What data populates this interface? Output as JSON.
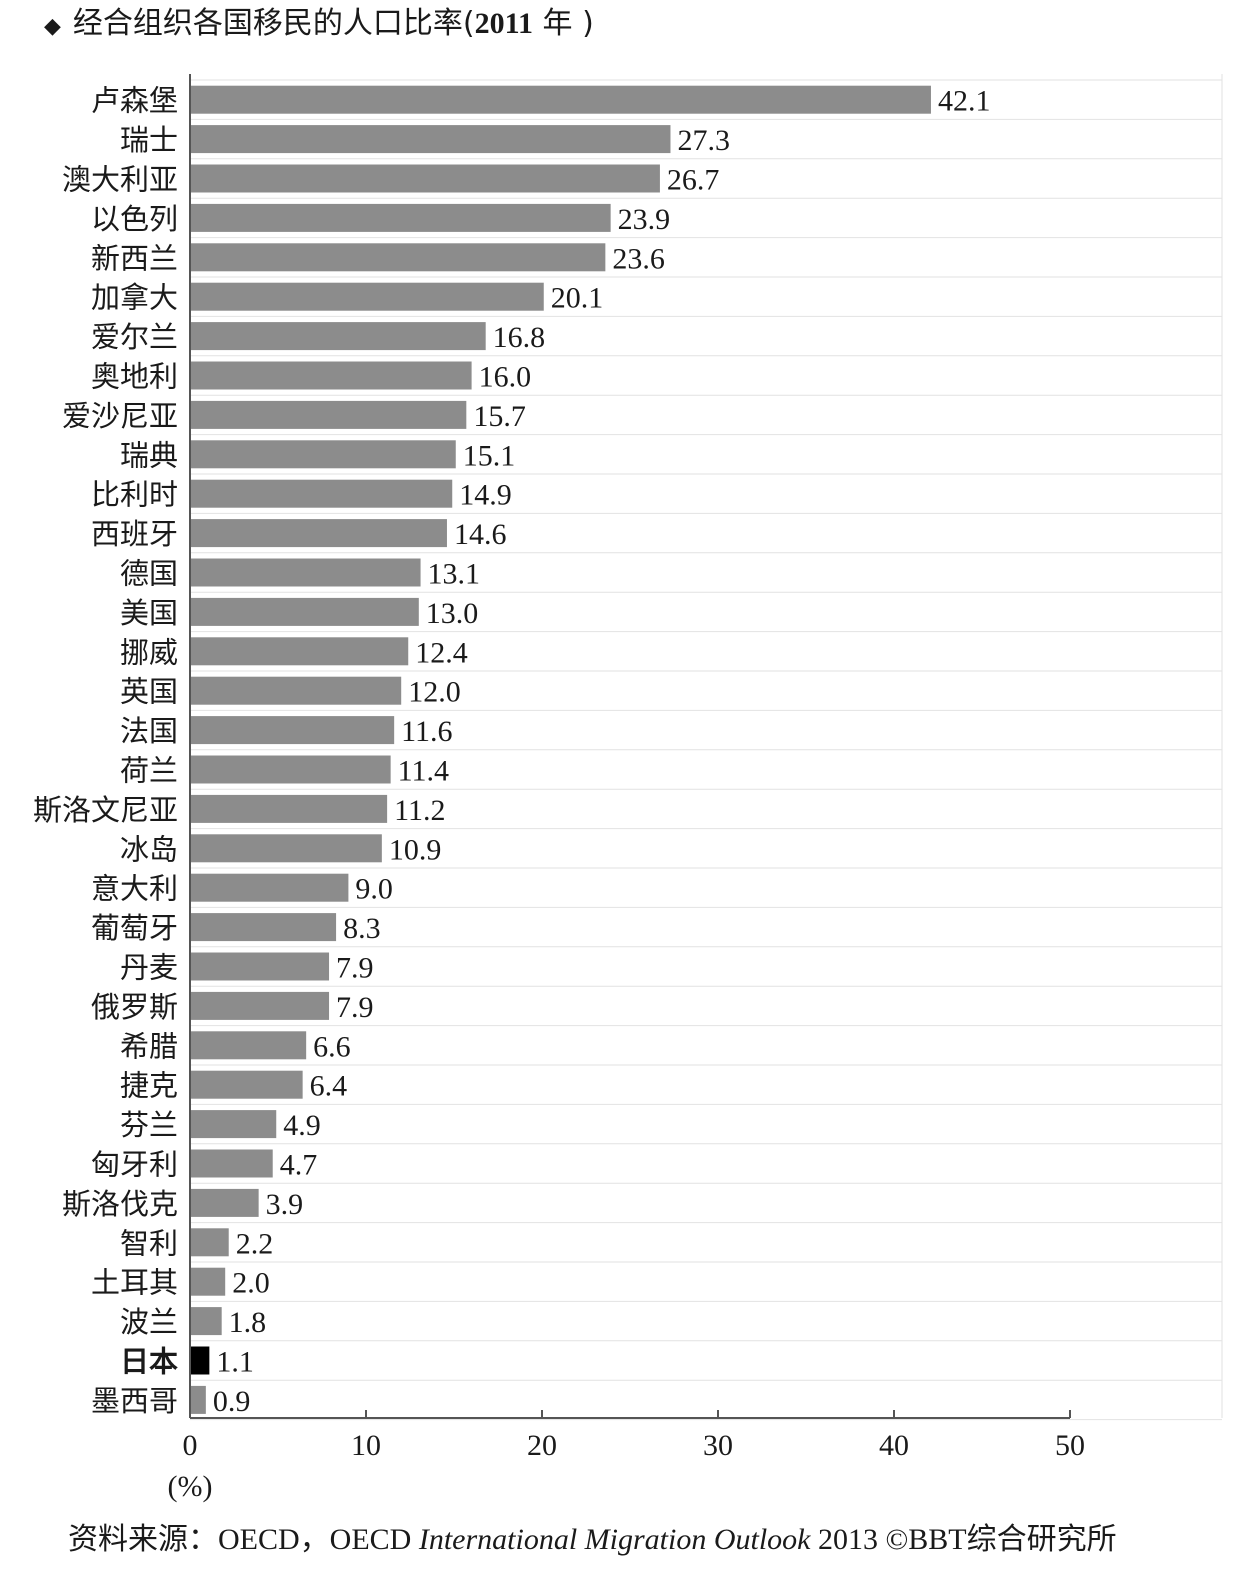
{
  "title": {
    "marker": "◆",
    "text": "经合组织各国移民的人口比率(",
    "year": "2011",
    "suffix": " 年 )"
  },
  "source": {
    "prefix": "资料来源：OECD，OECD ",
    "italic": "International Migration Outlook",
    "suffix": " 2013 ©BBT综合研究所"
  },
  "colors": {
    "bar": "#8c8c8c",
    "highlight": "#000000",
    "axis": "#555555",
    "grid": "#e2e2e2"
  },
  "chart_data": {
    "type": "bar",
    "orientation": "horizontal",
    "categories": [
      "卢森堡",
      "瑞士",
      "澳大利亚",
      "以色列",
      "新西兰",
      "加拿大",
      "爱尔兰",
      "奥地利",
      "爱沙尼亚",
      "瑞典",
      "比利时",
      "西班牙",
      "德国",
      "美国",
      "挪威",
      "英国",
      "法国",
      "荷兰",
      "斯洛文尼亚",
      "冰岛",
      "意大利",
      "葡萄牙",
      "丹麦",
      "俄罗斯",
      "希腊",
      "捷克",
      "芬兰",
      "匈牙利",
      "斯洛伐克",
      "智利",
      "土耳其",
      "波兰",
      "日本",
      "墨西哥"
    ],
    "values": [
      42.1,
      27.3,
      26.7,
      23.9,
      23.6,
      20.1,
      16.8,
      16.0,
      15.7,
      15.1,
      14.9,
      14.6,
      13.1,
      13.0,
      12.4,
      12.0,
      11.6,
      11.4,
      11.2,
      10.9,
      9.0,
      8.3,
      7.9,
      7.9,
      6.6,
      6.4,
      4.9,
      4.7,
      3.9,
      2.2,
      2.0,
      1.8,
      1.1,
      0.9
    ],
    "labels": [
      "42.1",
      "27.3",
      "26.7",
      "23.9",
      "23.6",
      "20.1",
      "16.8",
      "16.0",
      "15.7",
      "15.1",
      "14.9",
      "14.6",
      "13.1",
      "13.0",
      "12.4",
      "12.0",
      "11.6",
      "11.4",
      "11.2",
      "10.9",
      "9.0",
      "8.3",
      "7.9",
      "7.9",
      "6.6",
      "6.4",
      "4.9",
      "4.7",
      "3.9",
      "2.2",
      "2.0",
      "1.8",
      "1.1",
      "0.9"
    ],
    "highlight": "日本",
    "xlim": [
      0,
      50
    ],
    "xticks": [
      "0",
      "10",
      "20",
      "30",
      "40",
      "50"
    ],
    "xunit": "(%)",
    "grid": true
  }
}
